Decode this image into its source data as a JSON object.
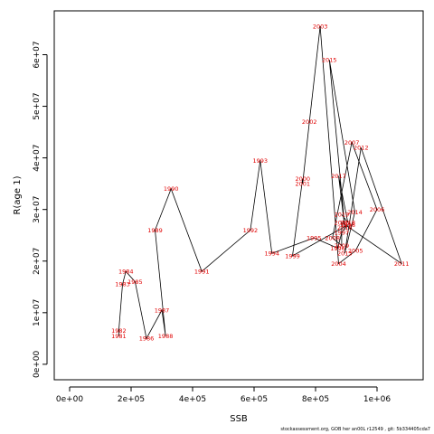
{
  "chart_data": {
    "type": "line",
    "title": "",
    "xlabel": "SSB",
    "ylabel": "R(age 1)",
    "xlim": [
      -50000,
      1150000
    ],
    "ylim": [
      -3000000,
      68500000
    ],
    "x_ticks": [
      {
        "value": 0,
        "label": "0e+00"
      },
      {
        "value": 200000,
        "label": "2e+05"
      },
      {
        "value": 400000,
        "label": "4e+05"
      },
      {
        "value": 600000,
        "label": "6e+05"
      },
      {
        "value": 800000,
        "label": "8e+05"
      },
      {
        "value": 1000000,
        "label": "1e+06"
      }
    ],
    "y_ticks": [
      {
        "value": 0,
        "label": "0e+00"
      },
      {
        "value": 10000000,
        "label": "1e+07"
      },
      {
        "value": 20000000,
        "label": "2e+07"
      },
      {
        "value": 30000000,
        "label": "3e+07"
      },
      {
        "value": 40000000,
        "label": "4e+07"
      },
      {
        "value": 50000000,
        "label": "5e+07"
      },
      {
        "value": 60000000,
        "label": "6e+07"
      }
    ],
    "grid": false,
    "line_color": "#000000",
    "label_color": "#e00000",
    "points": [
      {
        "year": "1981",
        "x": 160000,
        "y": 5500000
      },
      {
        "year": "1982",
        "x": 160000,
        "y": 6500000
      },
      {
        "year": "1983",
        "x": 172000,
        "y": 15500000
      },
      {
        "year": "1984",
        "x": 183000,
        "y": 18000000
      },
      {
        "year": "1985",
        "x": 213000,
        "y": 16000000
      },
      {
        "year": "1986",
        "x": 250000,
        "y": 5000000
      },
      {
        "year": "1987",
        "x": 300000,
        "y": 10500000
      },
      {
        "year": "1988",
        "x": 312000,
        "y": 5500000
      },
      {
        "year": "1989",
        "x": 278000,
        "y": 26000000
      },
      {
        "year": "1990",
        "x": 330000,
        "y": 34000000
      },
      {
        "year": "1991",
        "x": 430000,
        "y": 18000000
      },
      {
        "year": "1992",
        "x": 588000,
        "y": 26000000
      },
      {
        "year": "1993",
        "x": 620000,
        "y": 39500000
      },
      {
        "year": "1994",
        "x": 658000,
        "y": 21500000
      },
      {
        "year": "1995",
        "x": 795000,
        "y": 24500000
      },
      {
        "year": "1996",
        "x": 872000,
        "y": 22500000
      },
      {
        "year": "1997",
        "x": 885000,
        "y": 25500000
      },
      {
        "year": "1998",
        "x": 905000,
        "y": 27000000
      },
      {
        "year": "1999",
        "x": 725000,
        "y": 21000000
      },
      {
        "year": "2000",
        "x": 758000,
        "y": 36000000
      },
      {
        "year": "2001",
        "x": 758000,
        "y": 35000000
      },
      {
        "year": "2002",
        "x": 780000,
        "y": 47000000
      },
      {
        "year": "2003",
        "x": 815000,
        "y": 65500000
      },
      {
        "year": "2004",
        "x": 875000,
        "y": 19500000
      },
      {
        "year": "2005",
        "x": 930000,
        "y": 22000000
      },
      {
        "year": "2006",
        "x": 1000000,
        "y": 30000000
      },
      {
        "year": "2007",
        "x": 918000,
        "y": 43000000
      },
      {
        "year": "2008",
        "x": 855000,
        "y": 24500000
      },
      {
        "year": "2009",
        "x": 885000,
        "y": 23000000
      },
      {
        "year": "2010",
        "x": 885000,
        "y": 27500000
      },
      {
        "year": "2011",
        "x": 1080000,
        "y": 19500000
      },
      {
        "year": "2012",
        "x": 948000,
        "y": 42000000
      },
      {
        "year": "2013",
        "x": 895000,
        "y": 21500000
      },
      {
        "year": "2014",
        "x": 928000,
        "y": 29500000
      },
      {
        "year": "2015",
        "x": 845000,
        "y": 59000000
      },
      {
        "year": "2016",
        "x": 895000,
        "y": 26500000
      },
      {
        "year": "2017",
        "x": 875000,
        "y": 36500000
      },
      {
        "year": "2018",
        "x": 905000,
        "y": 27500000
      },
      {
        "year": "2019",
        "x": 885000,
        "y": 29000000
      }
    ]
  },
  "footer": "stockassessment.org, GOB her an00L r12549 , git: 5b334405cda7"
}
